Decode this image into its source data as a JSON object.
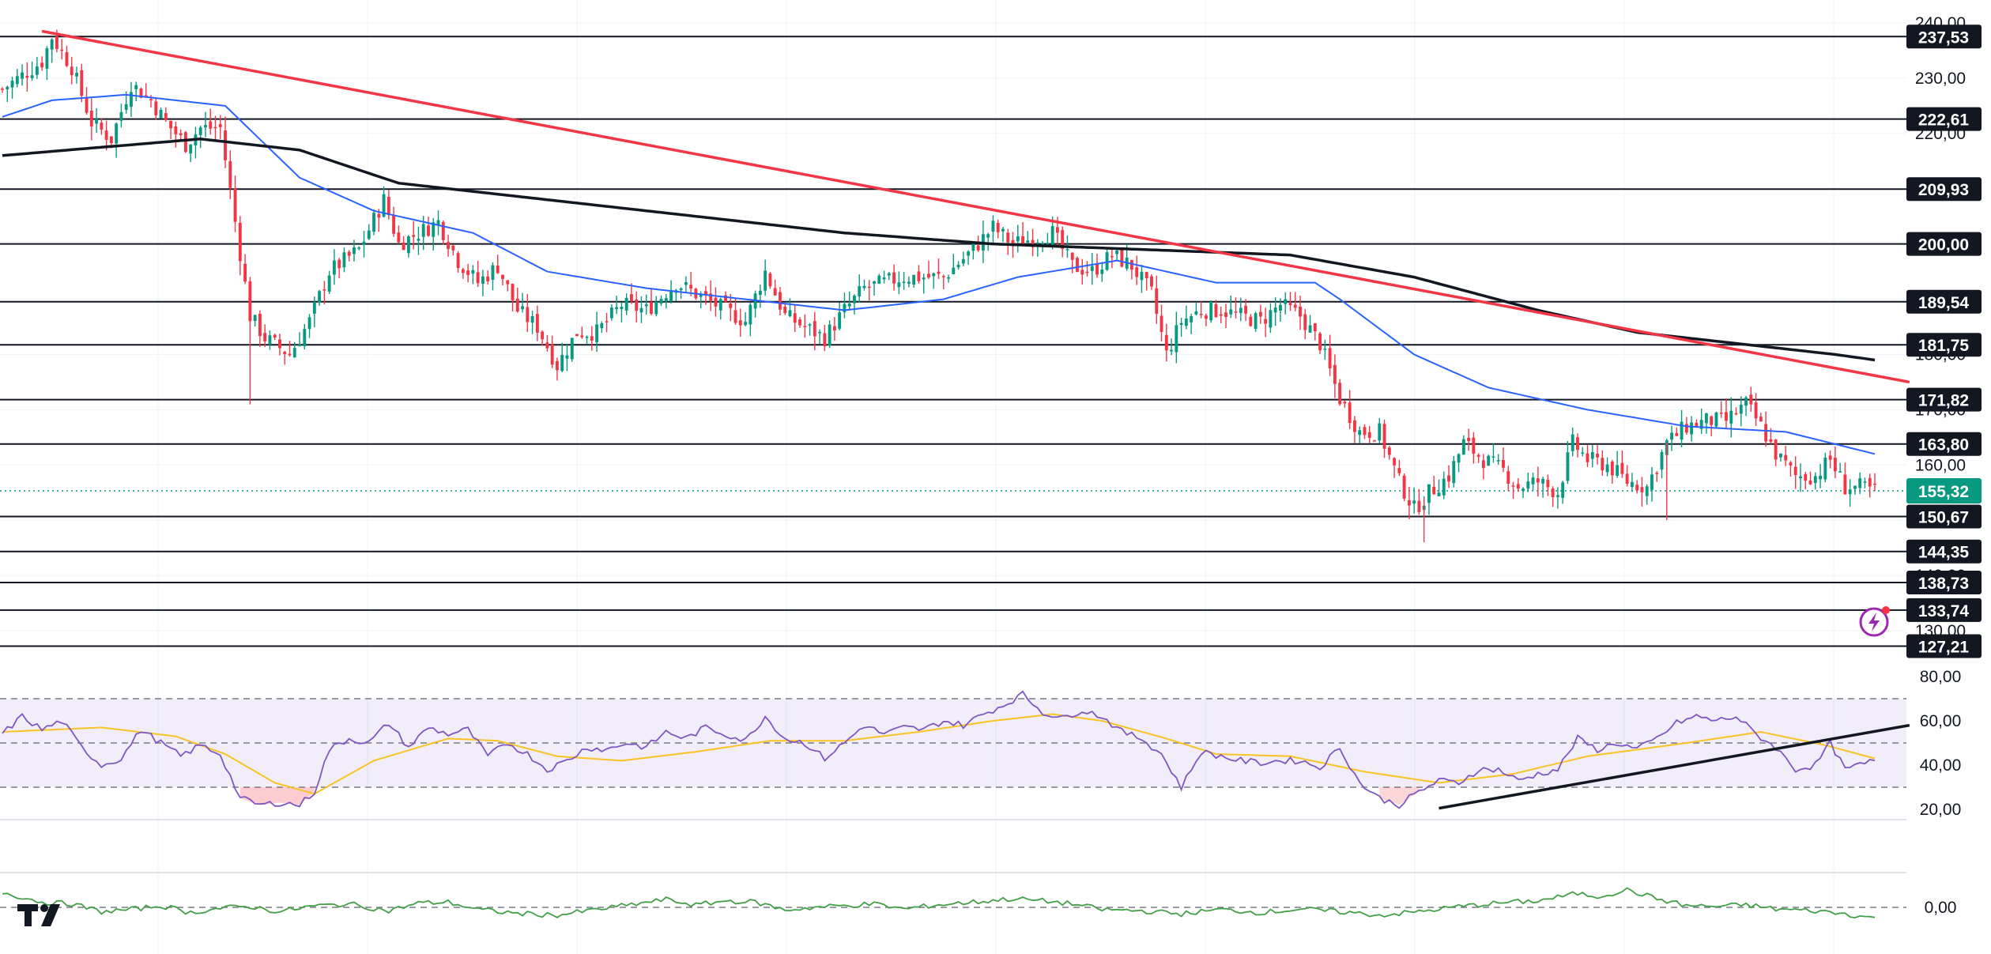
{
  "chart_data": [
    {
      "type": "candlestick",
      "title": "",
      "xlabel": "",
      "ylabel": "",
      "ylim": [
        124,
        241
      ],
      "y_ticks": [
        "240,00",
        "230,00",
        "220,00",
        "210,00",
        "200,00",
        "190,00",
        "180,00",
        "170,00",
        "160,00",
        "150,00",
        "140,00",
        "130,00"
      ],
      "last_price": {
        "value": 155.32,
        "label": "155,32",
        "color": "#089981"
      },
      "horizontal_levels": [
        {
          "value": 237.53,
          "label": "237,53"
        },
        {
          "value": 222.61,
          "label": "222,61"
        },
        {
          "value": 209.93,
          "label": "209,93"
        },
        {
          "value": 200.0,
          "label": "200,00"
        },
        {
          "value": 189.54,
          "label": "189,54"
        },
        {
          "value": 181.75,
          "label": "181,75"
        },
        {
          "value": 171.82,
          "label": "171,82"
        },
        {
          "value": 163.8,
          "label": "163,80"
        },
        {
          "value": 150.67,
          "label": "150,67"
        },
        {
          "value": 144.35,
          "label": "144,35"
        },
        {
          "value": 138.73,
          "label": "138,73"
        },
        {
          "value": 133.74,
          "label": "133,74"
        },
        {
          "value": 127.21,
          "label": "127,21"
        }
      ],
      "price_keypoints": [
        [
          0,
          228
        ],
        [
          8,
          233
        ],
        [
          10,
          237.5
        ],
        [
          14,
          232
        ],
        [
          18,
          222
        ],
        [
          22,
          219
        ],
        [
          26,
          229
        ],
        [
          30,
          226
        ],
        [
          33,
          222
        ],
        [
          37,
          218
        ],
        [
          40,
          221
        ],
        [
          44,
          221
        ],
        [
          47,
          204
        ],
        [
          50,
          187
        ],
        [
          53,
          183
        ],
        [
          58,
          180
        ],
        [
          62,
          186
        ],
        [
          66,
          195
        ],
        [
          72,
          199
        ],
        [
          77,
          208
        ],
        [
          80,
          200
        ],
        [
          84,
          202
        ],
        [
          88,
          204
        ],
        [
          92,
          197
        ],
        [
          96,
          193
        ],
        [
          100,
          196
        ],
        [
          104,
          188
        ],
        [
          108,
          185
        ],
        [
          112,
          178
        ],
        [
          116,
          184
        ],
        [
          120,
          184
        ],
        [
          125,
          189
        ],
        [
          130,
          188
        ],
        [
          136,
          193
        ],
        [
          140,
          191
        ],
        [
          146,
          188
        ],
        [
          150,
          186
        ],
        [
          154,
          195
        ],
        [
          158,
          187
        ],
        [
          162,
          185
        ],
        [
          166,
          183
        ],
        [
          170,
          188
        ],
        [
          174,
          192
        ],
        [
          178,
          193
        ],
        [
          182,
          194
        ],
        [
          186,
          194
        ],
        [
          190,
          194
        ],
        [
          196,
          199
        ],
        [
          200,
          203
        ],
        [
          204,
          200
        ],
        [
          208,
          201
        ],
        [
          212,
          202
        ],
        [
          216,
          196
        ],
        [
          220,
          195
        ],
        [
          224,
          198
        ],
        [
          228,
          196
        ],
        [
          232,
          191
        ],
        [
          235,
          180
        ],
        [
          238,
          186
        ],
        [
          242,
          188
        ],
        [
          246,
          188
        ],
        [
          250,
          187
        ],
        [
          254,
          186
        ],
        [
          258,
          189
        ],
        [
          262,
          187
        ],
        [
          266,
          182
        ],
        [
          270,
          172
        ],
        [
          274,
          166
        ],
        [
          278,
          166
        ],
        [
          282,
          157
        ],
        [
          285,
          152
        ],
        [
          288,
          155
        ],
        [
          292,
          158
        ],
        [
          295,
          164
        ],
        [
          299,
          161
        ],
        [
          303,
          159
        ],
        [
          306,
          156
        ],
        [
          310,
          157
        ],
        [
          314,
          155
        ],
        [
          317,
          164
        ],
        [
          320,
          161
        ],
        [
          324,
          160
        ],
        [
          328,
          157
        ],
        [
          332,
          156
        ],
        [
          336,
          164
        ],
        [
          340,
          167
        ],
        [
          344,
          168
        ],
        [
          348,
          168
        ],
        [
          352,
          171
        ],
        [
          355,
          167
        ],
        [
          358,
          162
        ],
        [
          362,
          158
        ],
        [
          366,
          158
        ],
        [
          369,
          161
        ],
        [
          372,
          156
        ],
        [
          375,
          156
        ],
        [
          378,
          155.3
        ]
      ],
      "series": [
        {
          "name": "",
          "color": "#2962ff",
          "keypoints": [
            [
              0,
              223
            ],
            [
              10,
              226
            ],
            [
              25,
              227
            ],
            [
              45,
              225
            ],
            [
              60,
              212
            ],
            [
              75,
              206
            ],
            [
              95,
              202
            ],
            [
              110,
              195
            ],
            [
              130,
              192
            ],
            [
              150,
              190
            ],
            [
              170,
              188
            ],
            [
              190,
              190
            ],
            [
              205,
              194
            ],
            [
              225,
              197
            ],
            [
              245,
              193
            ],
            [
              265,
              193
            ],
            [
              270,
              190
            ],
            [
              285,
              180
            ],
            [
              300,
              174
            ],
            [
              320,
              170
            ],
            [
              340,
              167
            ],
            [
              360,
              166
            ],
            [
              378,
              162
            ]
          ]
        },
        {
          "name": "",
          "color": "#131722",
          "keypoints": [
            [
              0,
              216
            ],
            [
              40,
              219
            ],
            [
              60,
              217
            ],
            [
              80,
              211
            ],
            [
              110,
              208
            ],
            [
              140,
              205
            ],
            [
              170,
              202
            ],
            [
              200,
              200
            ],
            [
              230,
              199
            ],
            [
              260,
              198
            ],
            [
              285,
              194
            ],
            [
              310,
              188
            ],
            [
              330,
              184
            ],
            [
              350,
              182
            ],
            [
              370,
              180
            ],
            [
              378,
              179
            ]
          ]
        },
        {
          "name": "",
          "color": "#f23645",
          "type": "trendline",
          "keypoints": [
            [
              8,
              238.5
            ],
            [
              385,
              175
            ]
          ]
        }
      ]
    },
    {
      "type": "line",
      "title": "",
      "ylim": [
        19,
        82
      ],
      "y_ticks": [
        "80,00",
        "60,00",
        "40,00",
        "20,00"
      ],
      "band": [
        30,
        70
      ],
      "midline": 50,
      "rsi_keypoints": [
        [
          0,
          54
        ],
        [
          4,
          62
        ],
        [
          8,
          56
        ],
        [
          12,
          60
        ],
        [
          16,
          48
        ],
        [
          20,
          40
        ],
        [
          24,
          43
        ],
        [
          28,
          56
        ],
        [
          32,
          50
        ],
        [
          36,
          44
        ],
        [
          40,
          49
        ],
        [
          44,
          45
        ],
        [
          48,
          25
        ],
        [
          52,
          22
        ],
        [
          56,
          23
        ],
        [
          60,
          22
        ],
        [
          63,
          28
        ],
        [
          66,
          47
        ],
        [
          70,
          52
        ],
        [
          74,
          50
        ],
        [
          78,
          59
        ],
        [
          82,
          48
        ],
        [
          86,
          57
        ],
        [
          90,
          54
        ],
        [
          94,
          56
        ],
        [
          98,
          44
        ],
        [
          102,
          50
        ],
        [
          106,
          45
        ],
        [
          110,
          38
        ],
        [
          114,
          42
        ],
        [
          118,
          48
        ],
        [
          122,
          47
        ],
        [
          126,
          50
        ],
        [
          130,
          48
        ],
        [
          134,
          55
        ],
        [
          138,
          52
        ],
        [
          142,
          57
        ],
        [
          146,
          54
        ],
        [
          150,
          51
        ],
        [
          154,
          62
        ],
        [
          158,
          52
        ],
        [
          162,
          50
        ],
        [
          166,
          43
        ],
        [
          170,
          50
        ],
        [
          174,
          58
        ],
        [
          178,
          54
        ],
        [
          182,
          57
        ],
        [
          186,
          56
        ],
        [
          190,
          60
        ],
        [
          194,
          58
        ],
        [
          198,
          63
        ],
        [
          202,
          67
        ],
        [
          206,
          72
        ],
        [
          210,
          64
        ],
        [
          214,
          61
        ],
        [
          218,
          65
        ],
        [
          222,
          62
        ],
        [
          226,
          55
        ],
        [
          230,
          52
        ],
        [
          234,
          45
        ],
        [
          238,
          30
        ],
        [
          242,
          46
        ],
        [
          246,
          44
        ],
        [
          250,
          42
        ],
        [
          254,
          41
        ],
        [
          258,
          42
        ],
        [
          262,
          42
        ],
        [
          266,
          39
        ],
        [
          270,
          48
        ],
        [
          274,
          32
        ],
        [
          278,
          25
        ],
        [
          282,
          22
        ],
        [
          286,
          28
        ],
        [
          290,
          33
        ],
        [
          294,
          32
        ],
        [
          298,
          38
        ],
        [
          302,
          38
        ],
        [
          306,
          33
        ],
        [
          310,
          36
        ],
        [
          314,
          38
        ],
        [
          318,
          52
        ],
        [
          322,
          47
        ],
        [
          326,
          50
        ],
        [
          330,
          47
        ],
        [
          334,
          52
        ],
        [
          338,
          59
        ],
        [
          342,
          62
        ],
        [
          346,
          60
        ],
        [
          350,
          62
        ],
        [
          354,
          54
        ],
        [
          358,
          48
        ],
        [
          362,
          38
        ],
        [
          366,
          40
        ],
        [
          369,
          50
        ],
        [
          372,
          38
        ],
        [
          375,
          40
        ],
        [
          378,
          42
        ]
      ],
      "rsi_color": "#7e57c2",
      "ma_keypoints": [
        [
          0,
          55
        ],
        [
          20,
          57
        ],
        [
          35,
          53
        ],
        [
          45,
          45
        ],
        [
          55,
          32
        ],
        [
          63,
          27
        ],
        [
          75,
          42
        ],
        [
          90,
          52
        ],
        [
          100,
          51
        ],
        [
          112,
          44
        ],
        [
          125,
          42
        ],
        [
          140,
          46
        ],
        [
          155,
          51
        ],
        [
          170,
          51
        ],
        [
          185,
          55
        ],
        [
          200,
          60
        ],
        [
          212,
          63
        ],
        [
          222,
          60
        ],
        [
          235,
          52
        ],
        [
          245,
          45
        ],
        [
          260,
          44
        ],
        [
          275,
          37
        ],
        [
          290,
          32
        ],
        [
          305,
          36
        ],
        [
          320,
          44
        ],
        [
          340,
          50
        ],
        [
          355,
          55
        ],
        [
          368,
          49
        ],
        [
          378,
          43
        ]
      ],
      "ma_color": "#f7c325",
      "trendline": [
        [
          290,
          20.5
        ],
        [
          385,
          58
        ]
      ]
    },
    {
      "type": "line",
      "title": "",
      "ylim": [
        -0.8,
        0.8
      ],
      "y_ticks": [
        "0,00"
      ],
      "keypoints": [
        [
          0,
          0.35
        ],
        [
          8,
          0.12
        ],
        [
          14,
          0.08
        ],
        [
          20,
          -0.1
        ],
        [
          26,
          -0.05
        ],
        [
          32,
          0.04
        ],
        [
          38,
          -0.12
        ],
        [
          44,
          -0.02
        ],
        [
          50,
          0.02
        ],
        [
          56,
          -0.1
        ],
        [
          62,
          0.02
        ],
        [
          70,
          0.08
        ],
        [
          78,
          -0.08
        ],
        [
          84,
          0.1
        ],
        [
          90,
          0.12
        ],
        [
          96,
          -0.05
        ],
        [
          104,
          -0.14
        ],
        [
          112,
          -0.18
        ],
        [
          120,
          -0.05
        ],
        [
          128,
          0.08
        ],
        [
          134,
          0.18
        ],
        [
          140,
          0.05
        ],
        [
          146,
          0.15
        ],
        [
          152,
          0.12
        ],
        [
          158,
          -0.06
        ],
        [
          164,
          0.0
        ],
        [
          170,
          0.04
        ],
        [
          176,
          0.08
        ],
        [
          182,
          -0.04
        ],
        [
          188,
          0.05
        ],
        [
          196,
          0.12
        ],
        [
          204,
          0.2
        ],
        [
          210,
          0.15
        ],
        [
          216,
          0.08
        ],
        [
          222,
          -0.05
        ],
        [
          230,
          -0.08
        ],
        [
          238,
          -0.15
        ],
        [
          246,
          -0.05
        ],
        [
          254,
          -0.12
        ],
        [
          262,
          -0.04
        ],
        [
          270,
          -0.1
        ],
        [
          278,
          -0.18
        ],
        [
          286,
          -0.1
        ],
        [
          294,
          0.02
        ],
        [
          302,
          0.1
        ],
        [
          310,
          0.15
        ],
        [
          318,
          0.32
        ],
        [
          322,
          0.25
        ],
        [
          328,
          0.4
        ],
        [
          334,
          0.2
        ],
        [
          340,
          0.04
        ],
        [
          346,
          0.02
        ],
        [
          352,
          0.06
        ],
        [
          358,
          -0.04
        ],
        [
          366,
          -0.08
        ],
        [
          372,
          -0.15
        ],
        [
          378,
          -0.25
        ]
      ],
      "color": "#43a047"
    }
  ],
  "icons": {
    "logo": "tradingview-logo-icon",
    "flash": "lightning-icon"
  }
}
